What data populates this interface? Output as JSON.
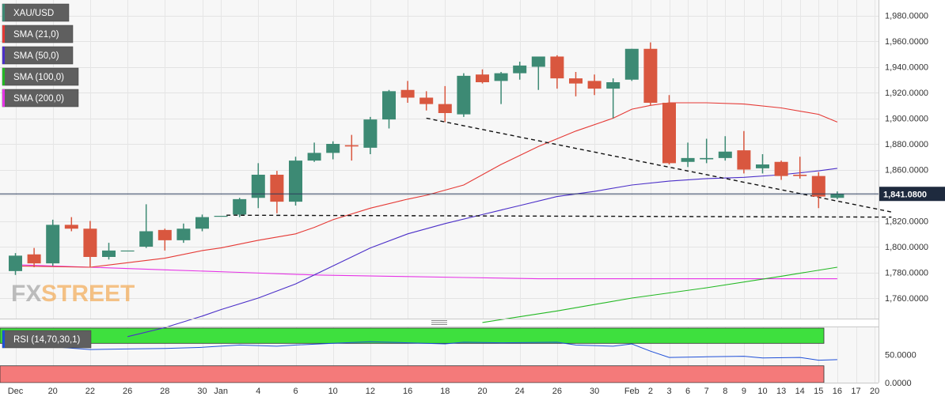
{
  "chart_data": {
    "type": "candlestick",
    "symbol": "XAU/USD",
    "legend": [
      {
        "label": "XAU/USD",
        "color": "#3d8a74"
      },
      {
        "label": "SMA (21,0)",
        "color": "#e53935"
      },
      {
        "label": "SMA (50,0)",
        "color": "#4b2fc8"
      },
      {
        "label": "SMA (100,0)",
        "color": "#22b822"
      },
      {
        "label": "SMA (200,0)",
        "color": "#e633e6"
      }
    ],
    "colors": {
      "up": "#3d8a74",
      "down": "#d9573f",
      "sma21": "#e53935",
      "sma50": "#4b2fc8",
      "sma100": "#22b822",
      "sma200": "#e633e6",
      "rsi": "#1f4fd8",
      "rsi_overbought": "#3ee03e",
      "rsi_oversold": "#f47a7a"
    },
    "ylim": [
      1744,
      1992
    ],
    "yticks": [
      1760,
      1780,
      1800,
      1820,
      1840,
      1860,
      1880,
      1900,
      1920,
      1940,
      1960,
      1980
    ],
    "ytick_labels": [
      "1,760.0000",
      "1,780.0000",
      "1,800.0000",
      "1,820.0000",
      "1,840.0000",
      "1,860.0000",
      "1,880.0000",
      "1,900.0000",
      "1,920.0000",
      "1,940.0000",
      "1,960.0000",
      "1,980.0000"
    ],
    "last_price": 1841.08,
    "last_price_label": "1,841.0800",
    "x_labels": [
      {
        "i": 0,
        "label": "Dec"
      },
      {
        "i": 2,
        "label": "20"
      },
      {
        "i": 4,
        "label": "22"
      },
      {
        "i": 6,
        "label": "26"
      },
      {
        "i": 8,
        "label": "28"
      },
      {
        "i": 10,
        "label": "30"
      },
      {
        "i": 11,
        "label": "Jan"
      },
      {
        "i": 13,
        "label": "4"
      },
      {
        "i": 15,
        "label": "6"
      },
      {
        "i": 17,
        "label": "10"
      },
      {
        "i": 19,
        "label": "12"
      },
      {
        "i": 21,
        "label": "16"
      },
      {
        "i": 23,
        "label": "18"
      },
      {
        "i": 25,
        "label": "20"
      },
      {
        "i": 27,
        "label": "24"
      },
      {
        "i": 29,
        "label": "26"
      },
      {
        "i": 31,
        "label": "30"
      },
      {
        "i": 33,
        "label": "Feb"
      },
      {
        "i": 34,
        "label": "2"
      },
      {
        "i": 35,
        "label": "3"
      },
      {
        "i": 36,
        "label": "6"
      },
      {
        "i": 37,
        "label": "7"
      },
      {
        "i": 38,
        "label": "8"
      },
      {
        "i": 39,
        "label": "9"
      },
      {
        "i": 40,
        "label": "10"
      },
      {
        "i": 41,
        "label": "13"
      },
      {
        "i": 42,
        "label": "14"
      },
      {
        "i": 43,
        "label": "15"
      },
      {
        "i": 44,
        "label": "16"
      },
      {
        "i": 45,
        "label": "17"
      },
      {
        "i": 46,
        "label": "20"
      }
    ],
    "candles": [
      {
        "o": 1781,
        "h": 1795,
        "l": 1778,
        "c": 1793
      },
      {
        "o": 1794,
        "h": 1799,
        "l": 1784,
        "c": 1787
      },
      {
        "o": 1787,
        "h": 1821,
        "l": 1785,
        "c": 1817
      },
      {
        "o": 1817,
        "h": 1823,
        "l": 1812,
        "c": 1814
      },
      {
        "o": 1814,
        "h": 1820,
        "l": 1784,
        "c": 1792
      },
      {
        "o": 1792,
        "h": 1803,
        "l": 1790,
        "c": 1797
      },
      {
        "o": 1797,
        "h": 1797,
        "l": 1797,
        "c": 1797
      },
      {
        "o": 1800,
        "h": 1833,
        "l": 1799,
        "c": 1812
      },
      {
        "o": 1813,
        "h": 1814,
        "l": 1797,
        "c": 1805
      },
      {
        "o": 1805,
        "h": 1818,
        "l": 1803,
        "c": 1814
      },
      {
        "o": 1814,
        "h": 1825,
        "l": 1812,
        "c": 1823
      },
      {
        "o": 1824,
        "h": 1824,
        "l": 1824,
        "c": 1824
      },
      {
        "o": 1825,
        "h": 1838,
        "l": 1823,
        "c": 1837
      },
      {
        "o": 1838,
        "h": 1865,
        "l": 1830,
        "c": 1856
      },
      {
        "o": 1856,
        "h": 1859,
        "l": 1826,
        "c": 1835
      },
      {
        "o": 1835,
        "h": 1870,
        "l": 1832,
        "c": 1867
      },
      {
        "o": 1867,
        "h": 1881,
        "l": 1866,
        "c": 1873
      },
      {
        "o": 1873,
        "h": 1882,
        "l": 1868,
        "c": 1880
      },
      {
        "o": 1879,
        "h": 1887,
        "l": 1867,
        "c": 1878
      },
      {
        "o": 1877,
        "h": 1901,
        "l": 1872,
        "c": 1899
      },
      {
        "o": 1899,
        "h": 1922,
        "l": 1892,
        "c": 1921
      },
      {
        "o": 1922,
        "h": 1929,
        "l": 1912,
        "c": 1916
      },
      {
        "o": 1916,
        "h": 1921,
        "l": 1906,
        "c": 1911
      },
      {
        "o": 1911,
        "h": 1925,
        "l": 1897,
        "c": 1904
      },
      {
        "o": 1903,
        "h": 1935,
        "l": 1901,
        "c": 1933
      },
      {
        "o": 1934,
        "h": 1938,
        "l": 1927,
        "c": 1928
      },
      {
        "o": 1929,
        "h": 1936,
        "l": 1911,
        "c": 1935
      },
      {
        "o": 1935,
        "h": 1944,
        "l": 1930,
        "c": 1941
      },
      {
        "o": 1940,
        "h": 1948,
        "l": 1922,
        "c": 1948
      },
      {
        "o": 1948,
        "h": 1949,
        "l": 1923,
        "c": 1931
      },
      {
        "o": 1931,
        "h": 1936,
        "l": 1917,
        "c": 1927
      },
      {
        "o": 1929,
        "h": 1934,
        "l": 1918,
        "c": 1923
      },
      {
        "o": 1923,
        "h": 1931,
        "l": 1900,
        "c": 1928
      },
      {
        "o": 1930,
        "h": 1954,
        "l": 1929,
        "c": 1954
      },
      {
        "o": 1954,
        "h": 1959,
        "l": 1910,
        "c": 1912
      },
      {
        "o": 1912,
        "h": 1918,
        "l": 1864,
        "c": 1865
      },
      {
        "o": 1866,
        "h": 1881,
        "l": 1862,
        "c": 1869
      },
      {
        "o": 1868,
        "h": 1884,
        "l": 1865,
        "c": 1869
      },
      {
        "o": 1869,
        "h": 1886,
        "l": 1867,
        "c": 1874
      },
      {
        "o": 1875,
        "h": 1890,
        "l": 1857,
        "c": 1860
      },
      {
        "o": 1861,
        "h": 1872,
        "l": 1857,
        "c": 1864
      },
      {
        "o": 1866,
        "h": 1867,
        "l": 1852,
        "c": 1855
      },
      {
        "o": 1856,
        "h": 1870,
        "l": 1853,
        "c": 1855
      },
      {
        "o": 1855,
        "h": 1858,
        "l": 1830,
        "c": 1839
      },
      {
        "o": 1838,
        "h": 1843,
        "l": 1837,
        "c": 1841
      }
    ],
    "sma21": [
      [
        0,
        1785
      ],
      [
        4,
        1784
      ],
      [
        8,
        1791
      ],
      [
        10,
        1797
      ],
      [
        11,
        1799
      ],
      [
        13,
        1805
      ],
      [
        15,
        1810
      ],
      [
        16,
        1815
      ],
      [
        17,
        1821
      ],
      [
        19,
        1830
      ],
      [
        21,
        1837
      ],
      [
        22,
        1840
      ],
      [
        24,
        1848
      ],
      [
        26,
        1864
      ],
      [
        28,
        1878
      ],
      [
        30,
        1890
      ],
      [
        32,
        1900
      ],
      [
        33,
        1907
      ],
      [
        34,
        1910
      ],
      [
        35,
        1912
      ],
      [
        37,
        1912
      ],
      [
        39,
        1911
      ],
      [
        41,
        1908
      ],
      [
        43,
        1903
      ],
      [
        44,
        1897
      ]
    ],
    "sma50": [
      [
        6,
        1730
      ],
      [
        8,
        1737
      ],
      [
        10,
        1746
      ],
      [
        11,
        1751
      ],
      [
        13,
        1760
      ],
      [
        15,
        1771
      ],
      [
        17,
        1785
      ],
      [
        19,
        1799
      ],
      [
        21,
        1810
      ],
      [
        23,
        1818
      ],
      [
        25,
        1825
      ],
      [
        27,
        1832
      ],
      [
        29,
        1839
      ],
      [
        31,
        1843
      ],
      [
        33,
        1848
      ],
      [
        35,
        1851
      ],
      [
        37,
        1853
      ],
      [
        39,
        1854
      ],
      [
        41,
        1856
      ],
      [
        43,
        1859
      ],
      [
        44,
        1861
      ]
    ],
    "sma100": [
      [
        25,
        1741
      ],
      [
        29,
        1750
      ],
      [
        33,
        1760
      ],
      [
        37,
        1768
      ],
      [
        41,
        1777
      ],
      [
        44,
        1784
      ]
    ],
    "sma200": [
      [
        0,
        1786
      ],
      [
        4,
        1784
      ],
      [
        8,
        1782
      ],
      [
        12,
        1780
      ],
      [
        16,
        1778
      ],
      [
        20,
        1777
      ],
      [
        24,
        1776
      ],
      [
        28,
        1775
      ],
      [
        32,
        1775
      ],
      [
        36,
        1775
      ],
      [
        40,
        1775
      ],
      [
        44,
        1775
      ]
    ],
    "trendlines": [
      {
        "from": [
          22,
          1900
        ],
        "to": [
          46.9,
          1827
        ],
        "style": "dashed"
      },
      {
        "from": [
          11.3,
          1824.5
        ],
        "to": [
          46.9,
          1823
        ],
        "style": "dashed"
      }
    ],
    "rsi": {
      "label": "RSI (14,70,30,1)",
      "ylim": [
        0,
        100
      ],
      "yticks": [
        0,
        50
      ],
      "ytick_labels": [
        "0.0000",
        "50.0000"
      ],
      "overbought": 70,
      "oversold": 30,
      "values": [
        [
          0,
          63
        ],
        [
          2,
          64
        ],
        [
          4,
          59
        ],
        [
          6,
          60
        ],
        [
          8,
          61
        ],
        [
          10,
          63
        ],
        [
          12,
          67
        ],
        [
          14,
          65
        ],
        [
          15,
          67
        ],
        [
          17,
          70
        ],
        [
          19,
          73
        ],
        [
          21,
          71
        ],
        [
          23,
          69
        ],
        [
          24,
          72
        ],
        [
          26,
          71
        ],
        [
          29,
          72
        ],
        [
          30,
          67
        ],
        [
          32,
          65
        ],
        [
          33,
          69
        ],
        [
          34,
          56
        ],
        [
          35,
          45
        ],
        [
          37,
          46
        ],
        [
          39,
          47
        ],
        [
          40,
          44
        ],
        [
          42,
          45
        ],
        [
          43,
          40
        ],
        [
          44,
          41
        ]
      ]
    },
    "watermark": {
      "prefix": "FX",
      "suffix": "STREET"
    }
  }
}
